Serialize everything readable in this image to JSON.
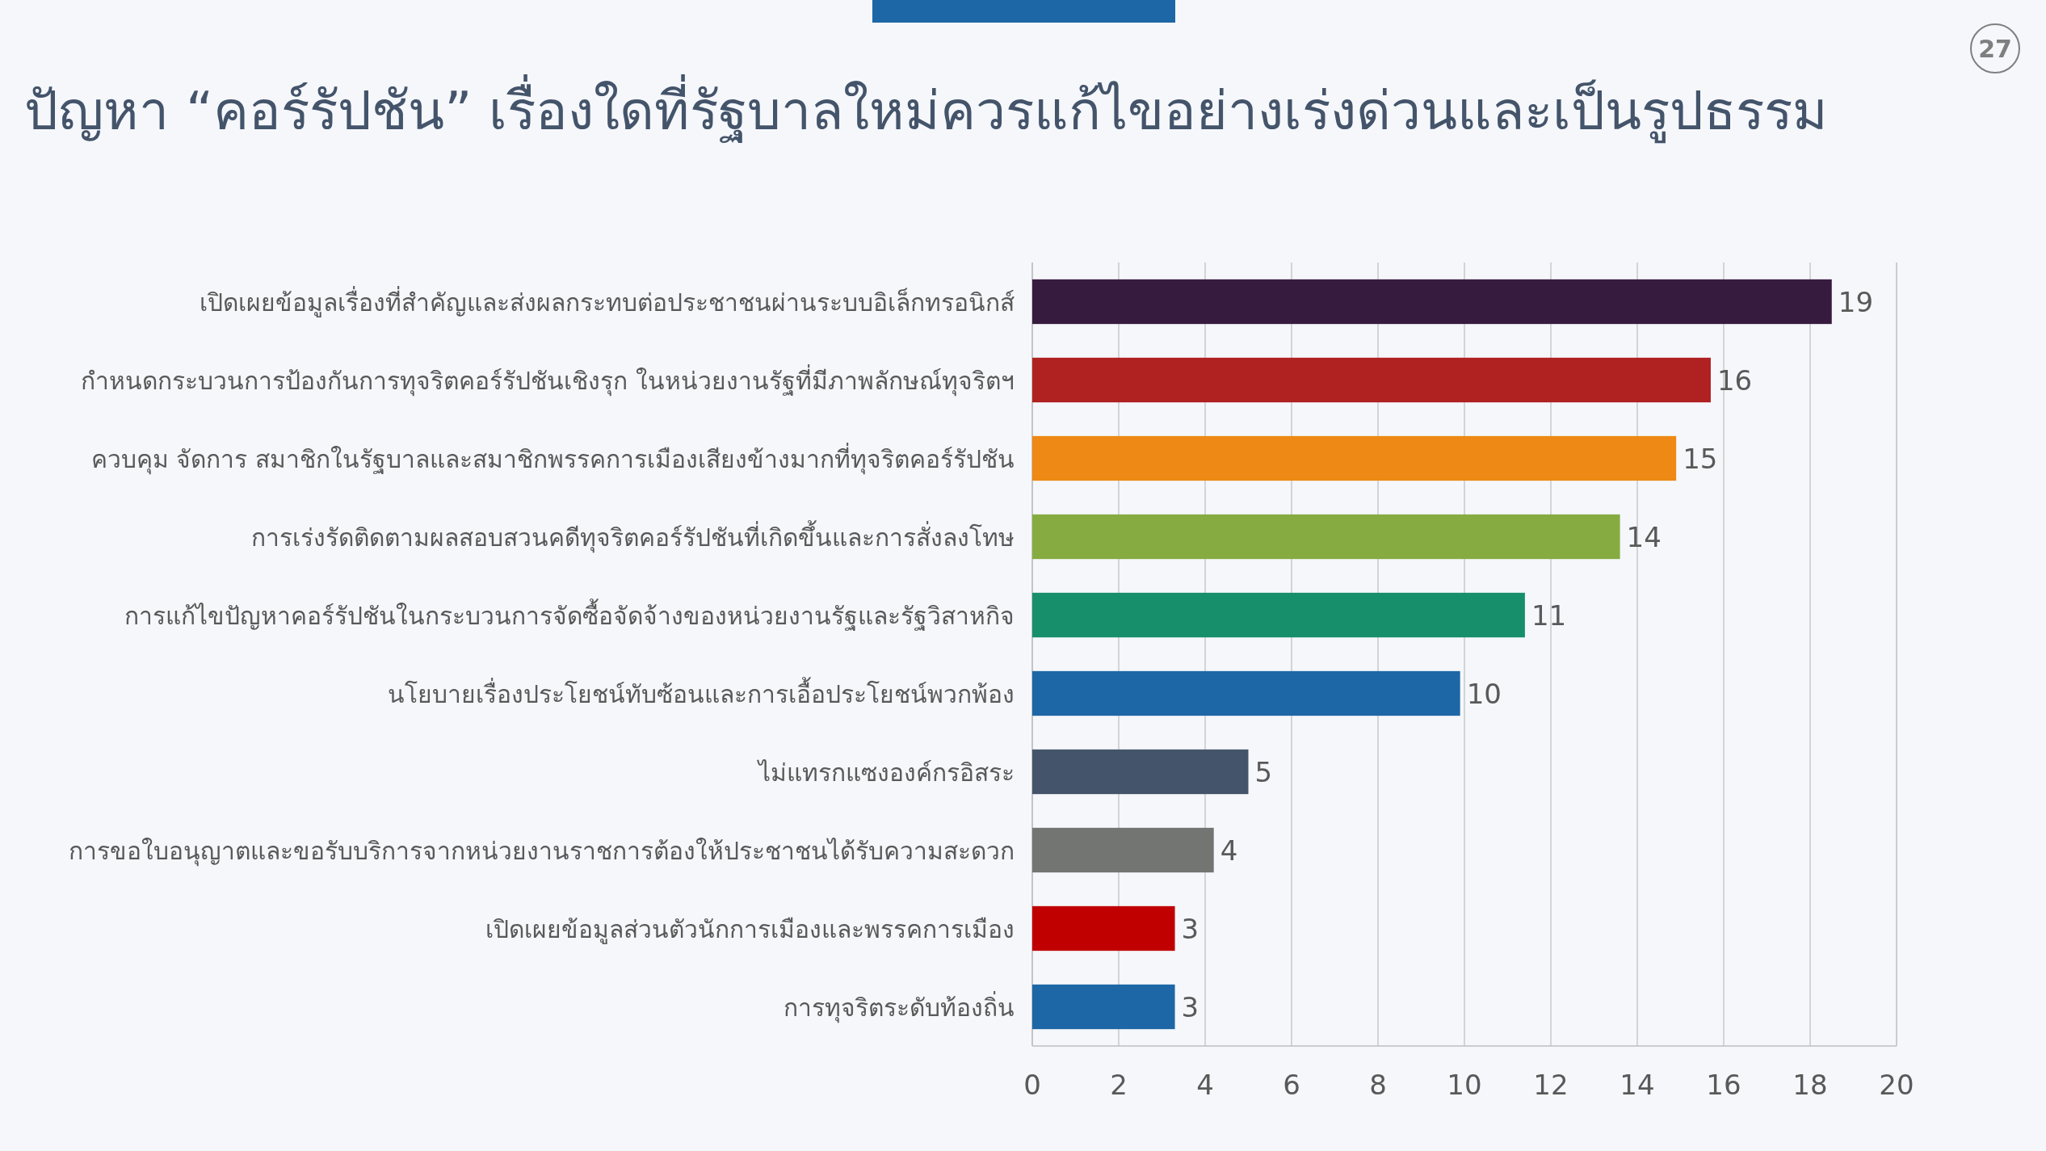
{
  "chart_data": {
    "type": "bar",
    "orientation": "horizontal",
    "title": "ปัญหา “คอร์รัปชัน” เรื่องใดที่รัฐบาลใหม่ควรแก้ไขอย่างเร่งด่วนและเป็นรูปธรรม",
    "annotations": [
      "27"
    ],
    "categories": [
      "เปิดเผยข้อมูลเรื่องที่สำคัญและส่งผลกระทบต่อประชาชนผ่านระบบอิเล็กทรอนิกส์",
      "กำหนดกระบวนการป้องกันการทุจริตคอร์รัปชันเชิงรุก ในหน่วยงานรัฐที่มีภาพลักษณ์ทุจริตฯ",
      "ควบคุม จัดการ สมาชิกในรัฐบาลและสมาชิกพรรคการเมืองเสียงข้างมากที่ทุจริตคอร์รัปชัน",
      "การเร่งรัดติดตามผลสอบสวนคดีทุจริตคอร์รัปชันที่เกิดขึ้นและการสั่งลงโทษ",
      "การแก้ไขปัญหาคอร์รัปชันในกระบวนการจัดซื้อจัดจ้างของหน่วยงานรัฐและรัฐวิสาหกิจ",
      "นโยบายเรื่องประโยชน์ทับซ้อนและการเอื้อประโยชน์พวกพ้อง",
      "ไม่แทรกแซงองค์กรอิสระ",
      "การขอใบอนุญาตและขอรับบริการจากหน่วยงานราชการต้องให้ประชาชนได้รับความสะดวก",
      "เปิดเผยข้อมูลส่วนตัวนักการเมืองและพรรคการเมือง",
      "การทุจริตระดับท้องถิ่น"
    ],
    "values": [
      18.5,
      15.7,
      14.9,
      13.6,
      11.4,
      9.9,
      5.0,
      4.2,
      3.3,
      3.3
    ],
    "value_labels": [
      "19",
      "16",
      "15",
      "14",
      "11",
      "10",
      "5",
      "4",
      "3",
      "3"
    ],
    "colors": [
      "#371b3f",
      "#b02121",
      "#ed8914",
      "#86ac41",
      "#188f6b",
      "#1d67a6",
      "#44546a",
      "#737572",
      "#c00000",
      "#1d67a6"
    ],
    "xlim": [
      0,
      20
    ],
    "xticks": [
      0,
      2,
      4,
      6,
      8,
      10,
      12,
      14,
      16,
      18,
      20
    ],
    "grid": "x"
  }
}
